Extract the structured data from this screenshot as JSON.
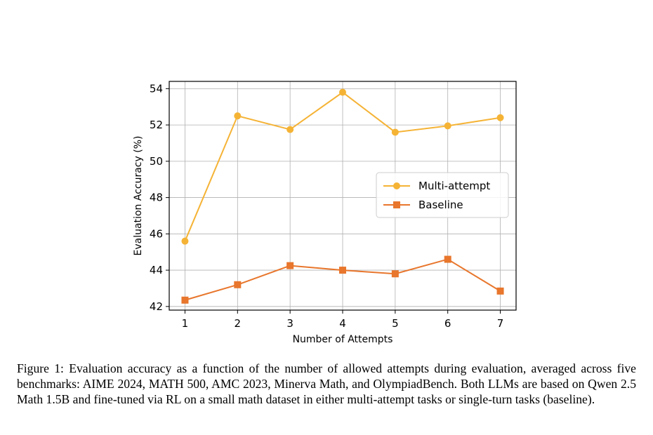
{
  "chart_data": {
    "type": "line",
    "xlabel": "Number of Attempts",
    "ylabel": "Evaluation Accuracy (%)",
    "x": [
      1,
      2,
      3,
      4,
      5,
      6,
      7
    ],
    "xlim": [
      0.7,
      7.3
    ],
    "ylim": [
      41.8,
      54.4
    ],
    "xticks": [
      1,
      2,
      3,
      4,
      5,
      6,
      7
    ],
    "yticks": [
      42,
      44,
      46,
      48,
      50,
      52,
      54
    ],
    "grid": true,
    "legend_position": "center-right",
    "series": [
      {
        "name": "Multi-attempt",
        "values": [
          45.6,
          52.5,
          51.75,
          53.8,
          51.6,
          51.95,
          52.4
        ],
        "color": "#F5B335",
        "marker": "circle"
      },
      {
        "name": "Baseline",
        "values": [
          42.35,
          43.2,
          44.25,
          44.0,
          43.8,
          44.6,
          42.85
        ],
        "color": "#E8762C",
        "marker": "square"
      }
    ]
  },
  "caption": "Figure 1:  Evaluation accuracy as a function of the number of allowed attempts during evaluation, averaged across five benchmarks: AIME 2024, MATH 500, AMC 2023, Minerva Math, and OlympiadBench. Both LLMs are based on Qwen 2.5 Math 1.5B and fine-tuned via RL on a small math dataset in either multi-attempt tasks or single-turn tasks (baseline)."
}
